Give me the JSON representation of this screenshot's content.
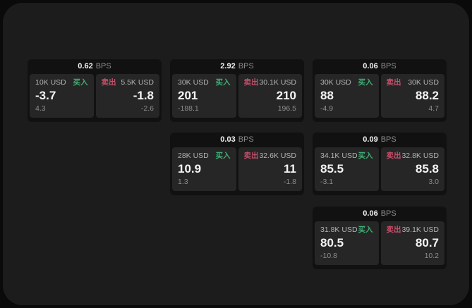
{
  "labels": {
    "bps": "BPS",
    "buy": "买入",
    "sell": "卖出"
  },
  "colors": {
    "background": "#0a0a0a",
    "panel": "#1c1c1c",
    "card": "#111111",
    "tile": "#262626",
    "buy": "#3fae75",
    "sell": "#c2506a",
    "price_text": "#f5f5f5",
    "amount_text": "#b3b3b3",
    "muted_text": "#8d8d8d"
  },
  "cards": [
    {
      "bps": "0.62",
      "buy": {
        "amount": "10K USD",
        "price": "-3.7",
        "delta": "4.3"
      },
      "sell": {
        "amount": "5.5K USD",
        "price": "-1.8",
        "delta": "-2.6"
      }
    },
    {
      "bps": "2.92",
      "buy": {
        "amount": "30K USD",
        "price": "201",
        "delta": "-188.1"
      },
      "sell": {
        "amount": "30.1K USD",
        "price": "210",
        "delta": "196.5"
      }
    },
    {
      "bps": "0.06",
      "buy": {
        "amount": "30K USD",
        "price": "88",
        "delta": "-4.9"
      },
      "sell": {
        "amount": "30K USD",
        "price": "88.2",
        "delta": "4.7"
      }
    },
    {
      "bps": "0.03",
      "buy": {
        "amount": "28K USD",
        "price": "10.9",
        "delta": "1.3"
      },
      "sell": {
        "amount": "32.6K USD",
        "price": "11",
        "delta": "-1.8"
      }
    },
    {
      "bps": "0.09",
      "buy": {
        "amount": "34.1K USD",
        "price": "85.5",
        "delta": "-3.1"
      },
      "sell": {
        "amount": "32.8K USD",
        "price": "85.8",
        "delta": "3.0"
      }
    },
    {
      "bps": "0.06",
      "buy": {
        "amount": "31.8K USD",
        "price": "80.5",
        "delta": "-10.8"
      },
      "sell": {
        "amount": "39.1K USD",
        "price": "80.7",
        "delta": "10.2"
      }
    }
  ]
}
